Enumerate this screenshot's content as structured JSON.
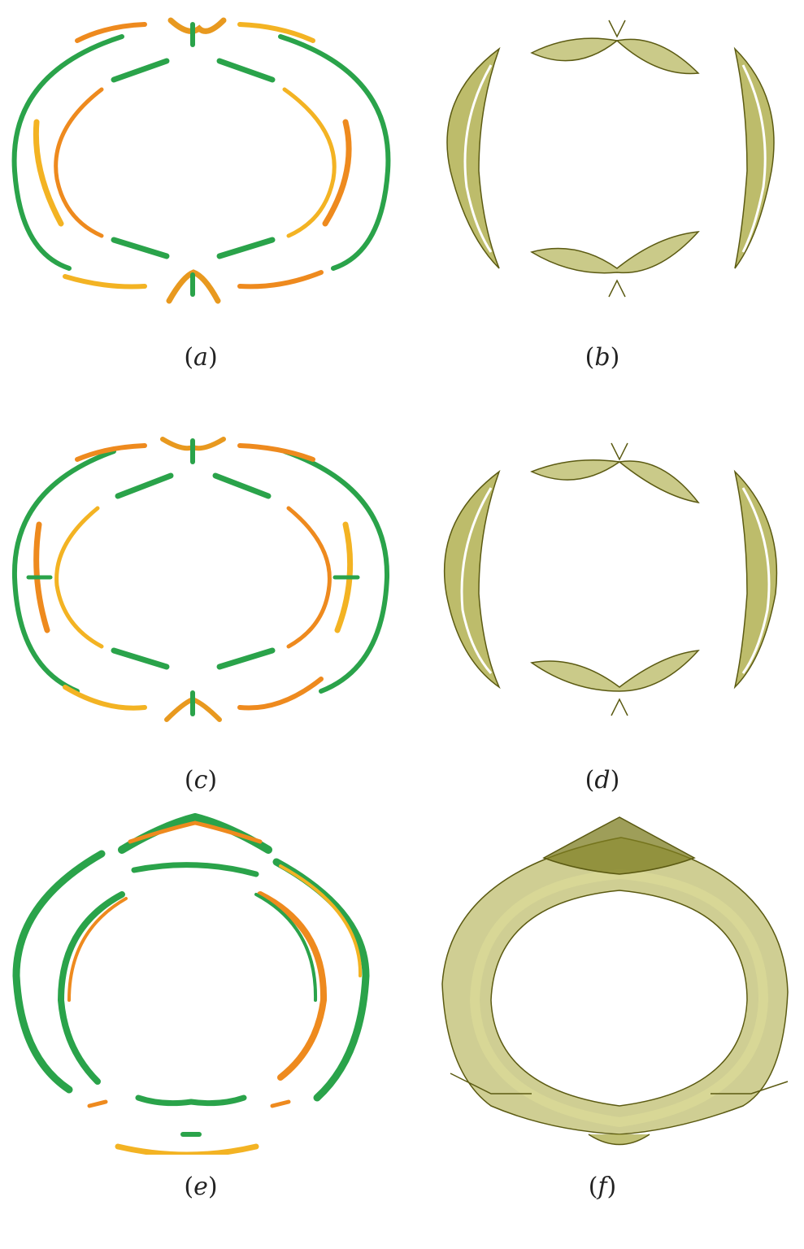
{
  "colors": {
    "green": "#2aa34a",
    "orange": "#ee8a1e",
    "yellow": "#f3b323",
    "olive": "#a7a63a",
    "olive_dark": "#5b5a12",
    "olive_light": "#d8d897"
  },
  "panels": [
    {
      "id": "a",
      "label": "a",
      "style": "vortex-lines"
    },
    {
      "id": "b",
      "label": "b",
      "style": "isosurface"
    },
    {
      "id": "c",
      "label": "c",
      "style": "vortex-lines"
    },
    {
      "id": "d",
      "label": "d",
      "style": "isosurface"
    },
    {
      "id": "e",
      "label": "e",
      "style": "vortex-lines-ring"
    },
    {
      "id": "f",
      "label": "f",
      "style": "isosurface-ring"
    }
  ]
}
